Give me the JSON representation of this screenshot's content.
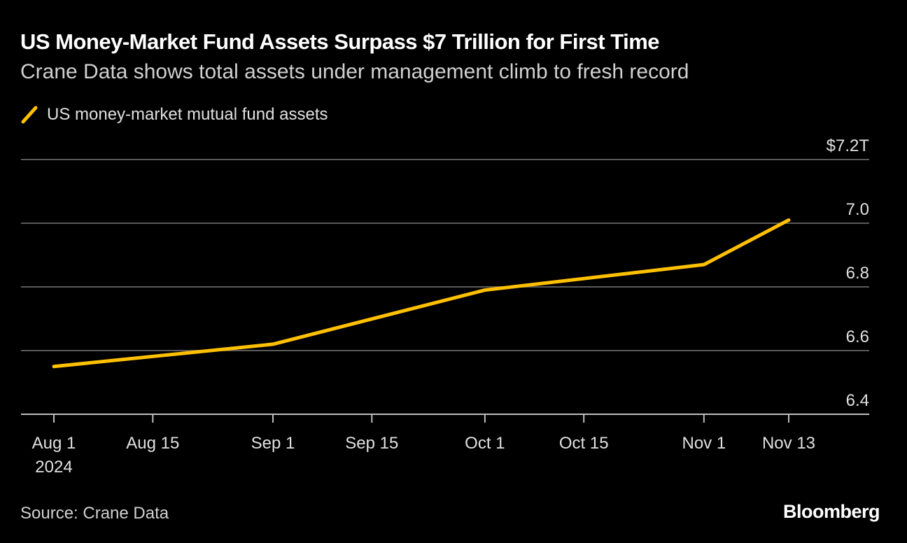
{
  "title": "US Money-Market Fund Assets Surpass $7 Trillion for First Time",
  "subtitle": "Crane Data shows total assets under management climb to fresh record",
  "source": "Source: Crane Data",
  "logo": "Bloomberg",
  "chart_data": {
    "type": "line",
    "title": "US Money-Market Fund Assets Surpass $7 Trillion for First Time",
    "subtitle": "Crane Data shows total assets under management climb to fresh record",
    "series": [
      {
        "name": "US money-market mutual fund assets",
        "color": "#ffc000",
        "x": [
          "2024-08-01",
          "2024-09-01",
          "2024-10-01",
          "2024-11-01",
          "2024-11-13"
        ],
        "values": [
          6.55,
          6.62,
          6.79,
          6.87,
          7.01
        ]
      }
    ],
    "xticks": [
      {
        "date": "2024-08-01",
        "label": "Aug 1",
        "sublabel": "2024"
      },
      {
        "date": "2024-08-15",
        "label": "Aug 15"
      },
      {
        "date": "2024-09-01",
        "label": "Sep 1"
      },
      {
        "date": "2024-09-15",
        "label": "Sep 15"
      },
      {
        "date": "2024-10-01",
        "label": "Oct 1"
      },
      {
        "date": "2024-10-15",
        "label": "Oct 15"
      },
      {
        "date": "2024-11-01",
        "label": "Nov 1"
      },
      {
        "date": "2024-11-13",
        "label": "Nov 13"
      }
    ],
    "yticks": [
      {
        "value": 7.2,
        "label": "$7.2T"
      },
      {
        "value": 7.0,
        "label": "7.0"
      },
      {
        "value": 6.8,
        "label": "6.8"
      },
      {
        "value": 6.6,
        "label": "6.6"
      },
      {
        "value": 6.4,
        "label": "6.4"
      }
    ],
    "ylim": [
      6.4,
      7.2
    ],
    "xlim": [
      "2024-07-27",
      "2024-11-24"
    ],
    "ylabel": "",
    "xlabel": "",
    "grid": true,
    "y_axis_side": "right",
    "legend": "top-left"
  }
}
